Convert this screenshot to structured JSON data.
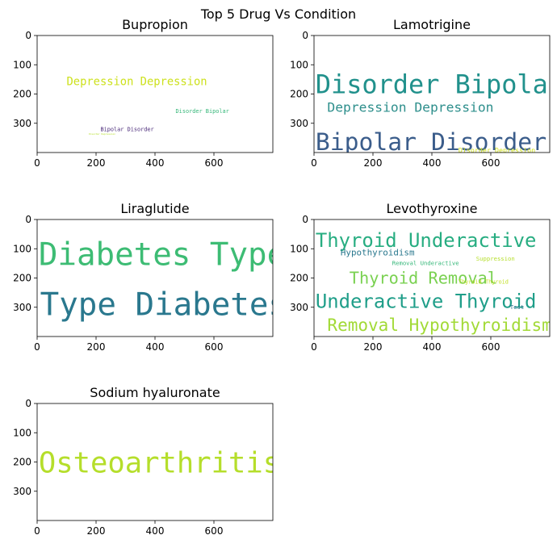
{
  "chart_data": {
    "type": "wordcloud",
    "title": "Top 5 Drug Vs Condition",
    "xlim": [
      0,
      800
    ],
    "ylim": [
      400,
      0
    ],
    "x_ticks": [
      0,
      200,
      400,
      600
    ],
    "y_ticks": [
      0,
      100,
      200,
      300
    ],
    "subplots": [
      {
        "title": "Bupropion",
        "words": [
          {
            "text": "Depression Depression",
            "x": 100,
            "y": 140,
            "size": 38,
            "color": "#cde11d"
          },
          {
            "text": "Disorder Bipolar",
            "x": 470,
            "y": 250,
            "size": 19,
            "color": "#35b779"
          },
          {
            "text": "Bipolar Disorder",
            "x": 215,
            "y": 312,
            "size": 19,
            "color": "#482878"
          },
          {
            "text": "Disorder Depression",
            "x": 175,
            "y": 333,
            "size": 8,
            "color": "#b5de2b"
          }
        ]
      },
      {
        "title": "Lamotrigine",
        "words": [
          {
            "text": "Disorder Bipolar",
            "x": 5,
            "y": 128,
            "size": 88,
            "color": "#21918c"
          },
          {
            "text": "Depression Depression",
            "x": 45,
            "y": 225,
            "size": 45,
            "color": "#2e8f8c"
          },
          {
            "text": "Bipolar Disorder",
            "x": 5,
            "y": 328,
            "size": 82,
            "color": "#3b5d8b"
          },
          {
            "text": "Disorder Depression",
            "x": 490,
            "y": 382,
            "size": 23,
            "color": "#d1e21b"
          }
        ]
      },
      {
        "title": "Liraglutide",
        "words": [
          {
            "text": "Diabetes Type",
            "x": 5,
            "y": 72,
            "size": 108,
            "color": "#3dbc74"
          },
          {
            "text": "Type Diabetes",
            "x": 10,
            "y": 242,
            "size": 108,
            "color": "#2a788e"
          }
        ]
      },
      {
        "title": "Levothyroxine",
        "words": [
          {
            "text": "Thyroid Underactive",
            "x": 5,
            "y": 43,
            "size": 66,
            "color": "#27ad81"
          },
          {
            "text": "Hypothyroidism",
            "x": 90,
            "y": 100,
            "size": 30,
            "color": "#2a788e"
          },
          {
            "text": "Removal Underactive",
            "x": 265,
            "y": 140,
            "size": 20,
            "color": "#35b779"
          },
          {
            "text": "Suppression",
            "x": 550,
            "y": 125,
            "size": 20,
            "color": "#b5de2b"
          },
          {
            "text": "Thyroid Removal",
            "x": 120,
            "y": 175,
            "size": 56,
            "color": "#7ad151"
          },
          {
            "text": "Thyroid Thyroid",
            "x": 490,
            "y": 205,
            "size": 19,
            "color": "#c2df23"
          },
          {
            "text": "Underactive Thyroid",
            "x": 5,
            "y": 250,
            "size": 66,
            "color": "#1f9e89"
          },
          {
            "text": "Test",
            "x": 665,
            "y": 290,
            "size": 20,
            "color": "#2c728e"
          },
          {
            "text": "Removal Hypothyroidism",
            "x": 45,
            "y": 335,
            "size": 58,
            "color": "#a2da37"
          }
        ]
      },
      {
        "title": "Sodium hyaluronate",
        "words": [
          {
            "text": "Osteoarthritis",
            "x": 5,
            "y": 160,
            "size": 98,
            "color": "#b5de2b"
          }
        ]
      }
    ]
  }
}
